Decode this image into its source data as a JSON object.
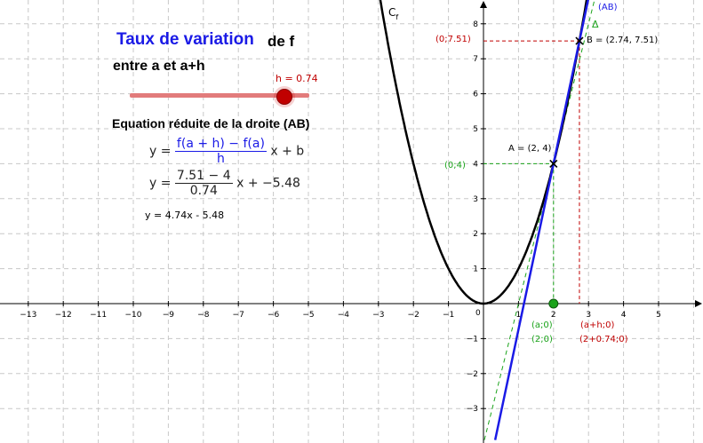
{
  "title": {
    "part1": "Taux de variation",
    "part2": "de f",
    "line2": "entre a et a+h"
  },
  "slider": {
    "label": "h = 0.74",
    "value": 0.74
  },
  "equation": {
    "heading": "Equation réduite de la droite (AB)",
    "y1_lhs": "y =",
    "y1_num": "f(a + h) − f(a)",
    "y1_den": "h",
    "y1_rhs": "x + b",
    "y2_lhs": "y =",
    "y2_num": "7.51 − 4",
    "y2_den": "0.74",
    "y2_rhs": "x + −5.48",
    "result": "y = 4.74x - 5.48"
  },
  "graph": {
    "x_ticks": [
      "−13",
      "−12",
      "−11",
      "−10",
      "−9",
      "−8",
      "−7",
      "−6",
      "−5",
      "−4",
      "−3",
      "−2",
      "−1",
      "1",
      "2",
      "3",
      "4",
      "5"
    ],
    "y_ticks": [
      "−3",
      "−2",
      "−1",
      "1",
      "2",
      "3",
      "4",
      "5",
      "6",
      "7",
      "8"
    ],
    "origin_label": "0",
    "labels": {
      "curve": "C",
      "curve_sub": "f",
      "line_ab": "(AB)",
      "tangent": "Δ",
      "point_a": "A = (2, 4)",
      "point_b": "B = (2.74, 7.51)",
      "a_y": "(0;4)",
      "b_y": "(0;7.51)",
      "a_x": "(a;0)",
      "a_x_val": "(2;0)",
      "b_x": "(a+h;0)",
      "b_x_val": "(2+0.74;0)"
    },
    "colors": {
      "line": "#1a1ae6",
      "green": "#1aa31a",
      "red": "#c00000",
      "curve": "#000000",
      "grid": "#c0c0c0"
    }
  }
}
